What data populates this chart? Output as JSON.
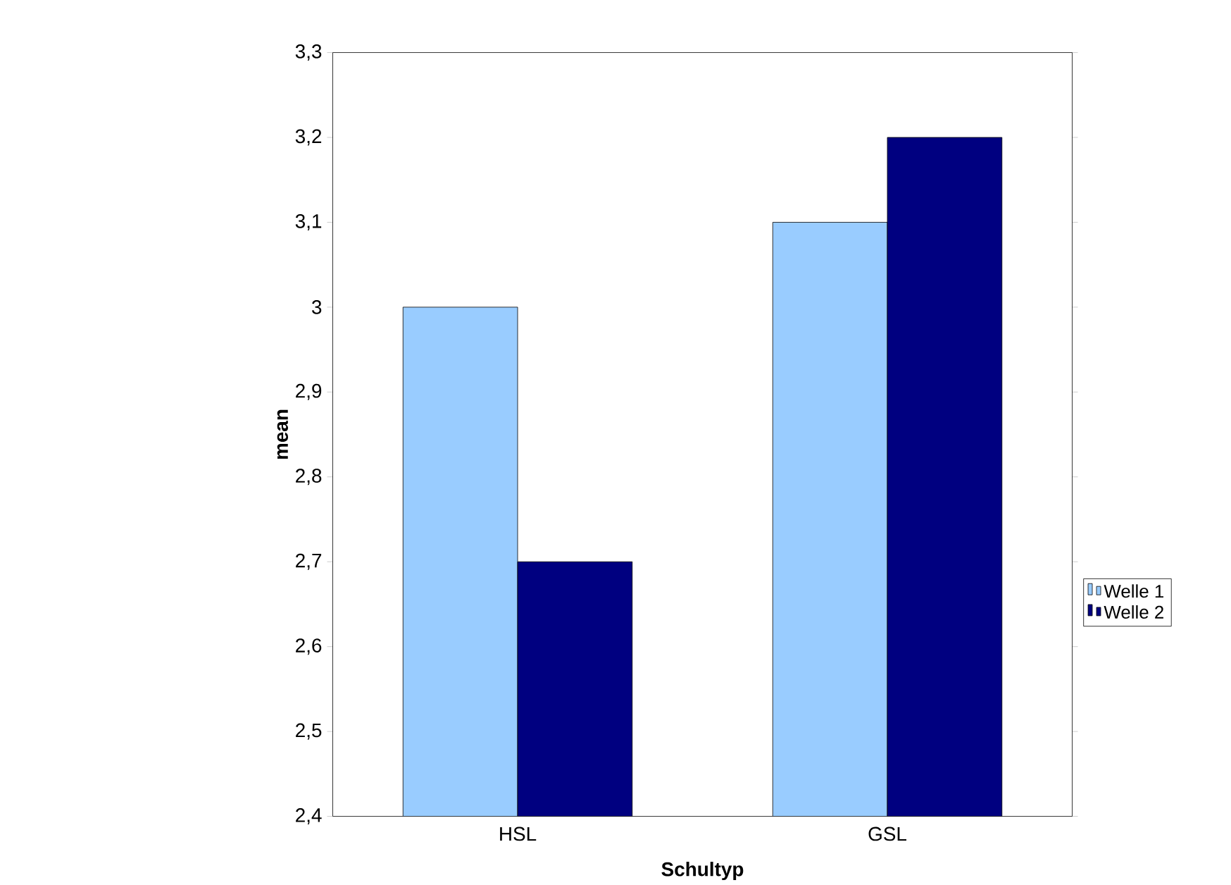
{
  "chart_data": {
    "type": "bar",
    "xlabel": "Schultyp",
    "ylabel": "mean",
    "categories": [
      "HSL",
      "GSL"
    ],
    "series": [
      {
        "name": "Welle 1",
        "color": "#99ccff",
        "values": [
          3.0,
          3.1
        ]
      },
      {
        "name": "Welle 2",
        "color": "#000080",
        "values": [
          2.7,
          3.2
        ]
      }
    ],
    "ylim": [
      2.4,
      3.3
    ],
    "yticks": [
      {
        "value": 2.4,
        "label": "2,4"
      },
      {
        "value": 2.5,
        "label": "2,5"
      },
      {
        "value": 2.6,
        "label": "2,6"
      },
      {
        "value": 2.7,
        "label": "2,7"
      },
      {
        "value": 2.8,
        "label": "2,8"
      },
      {
        "value": 2.9,
        "label": "2,9"
      },
      {
        "value": 3,
        "label": "3"
      },
      {
        "value": 3.1,
        "label": "3,1"
      },
      {
        "value": 3.2,
        "label": "3,2"
      },
      {
        "value": 3.3,
        "label": "3,3"
      }
    ],
    "legend": "right",
    "grid": false
  }
}
